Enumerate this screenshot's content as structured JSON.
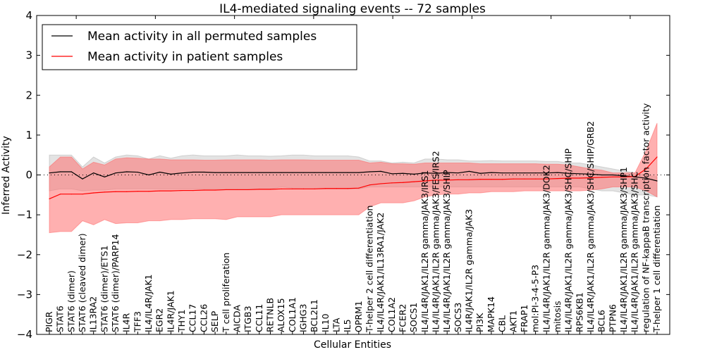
{
  "chart_data": {
    "type": "line",
    "title": "IL4-mediated signaling events -- 72 samples",
    "xlabel": "Cellular Entities",
    "ylabel": "Inferred Activity",
    "ylim": [
      -4,
      4
    ],
    "yticks": [
      -4,
      -3,
      -2,
      -1,
      0,
      1,
      2,
      3,
      4
    ],
    "ytick_labels": [
      "−4",
      "−3",
      "−2",
      "−1",
      "0",
      "1",
      "2",
      "3",
      "4"
    ],
    "reference_line": {
      "y": 0,
      "style": "dotted"
    },
    "legend": {
      "placement": "top-left",
      "entries": [
        {
          "label": "Mean activity in all permuted samples",
          "color": "#000000"
        },
        {
          "label": "Mean activity in patient samples",
          "color": "#ff0000"
        }
      ]
    },
    "colors": {
      "permuted_line": "#000000",
      "permuted_band": "#c8c8c8",
      "patient_line": "#ff0000",
      "patient_band": "#ff7070"
    },
    "categories": [
      "PIGR",
      "STAT6",
      "STAT6 (dimer)",
      "STAT6 (cleaved dimer)",
      "IL13RA2",
      "STAT6 (dimer)/ETS1",
      "STAT6 (dimer)/PARP14",
      "IL4R",
      "TFF3",
      "IL4/IL4R/JAK1",
      "EGR2",
      "IL4R/JAK1",
      "THY1",
      "CCL17",
      "CCL26",
      "SELP",
      "T cell proliferation",
      "AICDA",
      "ITGB3",
      "CCL11",
      "RETNLB",
      "ALOX15",
      "COL1A1",
      "IGHG3",
      "BCL2L1",
      "IL10",
      "LTA",
      "IL5",
      "OPRM1",
      "T-helper 2 cell differentiation",
      "IL4/IL4R/JAK1/IL13RA1/JAK2",
      "COL1A2",
      "FCER2",
      "SOCS1",
      "IL4/IL4R/JAK1/IL2R gamma/JAK3/IRS1",
      "IL4/IL4R/JAK1/IL2R gamma/JAK3/FES/IRS2",
      "IL4/IL4R/JAK1/IL2R gamma/JAK3/SHIP",
      "SOCS3",
      "IL4R/JAK1/IL2R gamma/JAK3",
      "PI3K",
      "MAPK14",
      "CBL",
      "AKT1",
      "FRAP1",
      "mol:PI-3-4-5-P3",
      "IL4/IL4R/JAK1/IL2R gamma/JAK3/DOK2",
      "mitosis",
      "IL4/IL4R/JAK1/IL2R gamma/JAK3/SHC/SHIP",
      "RPS6KB1",
      "IL4/IL4R/JAK1/IL2R gamma/JAK3/SHC/SHIP/GRB2",
      "BCL6",
      "PTPN6",
      "IL4/IL4R/JAK1/IL2R gamma/JAK3/SHP1",
      "IL4/IL4R/JAK1/IL2R gamma/JAK3/SHC",
      "regulation of NF-kappaB transcription factor activity",
      "T-helper 1 cell differentiation"
    ],
    "series": [
      {
        "name": "Mean activity in all permuted samples",
        "values": [
          0.05,
          0.08,
          0.08,
          -0.1,
          0.05,
          -0.05,
          0.05,
          0.08,
          0.07,
          0.0,
          0.07,
          0.02,
          0.05,
          0.07,
          0.07,
          0.06,
          0.06,
          0.06,
          0.06,
          0.06,
          0.06,
          0.06,
          0.06,
          0.06,
          0.06,
          0.06,
          0.06,
          0.06,
          0.06,
          0.08,
          0.09,
          0.03,
          0.04,
          0.02,
          0.05,
          0.04,
          0.06,
          0.05,
          0.09,
          0.04,
          0.06,
          0.05,
          0.05,
          0.05,
          0.05,
          0.05,
          0.06,
          0.04,
          0.03,
          0.02,
          0.0,
          0.0,
          -0.02,
          -0.05,
          -0.08,
          -0.15
        ],
        "band_upper": [
          0.5,
          0.5,
          0.5,
          0.2,
          0.45,
          0.3,
          0.45,
          0.5,
          0.48,
          0.4,
          0.48,
          0.42,
          0.48,
          0.5,
          0.48,
          0.48,
          0.48,
          0.5,
          0.48,
          0.48,
          0.47,
          0.48,
          0.5,
          0.5,
          0.48,
          0.48,
          0.48,
          0.48,
          0.45,
          0.35,
          0.35,
          0.3,
          0.32,
          0.3,
          0.4,
          0.4,
          0.38,
          0.38,
          0.35,
          0.35,
          0.36,
          0.35,
          0.35,
          0.35,
          0.35,
          0.34,
          0.34,
          0.3,
          0.3,
          0.25,
          0.2,
          0.15,
          0.1,
          0.05,
          0.0,
          -0.05
        ],
        "band_lower": [
          -0.4,
          -0.35,
          -0.35,
          -0.4,
          -0.38,
          -0.38,
          -0.35,
          -0.35,
          -0.35,
          -0.35,
          -0.35,
          -0.35,
          -0.35,
          -0.35,
          -0.35,
          -0.35,
          -0.35,
          -0.35,
          -0.35,
          -0.35,
          -0.35,
          -0.3,
          -0.33,
          -0.35,
          -0.35,
          -0.35,
          -0.35,
          -0.35,
          -0.35,
          -0.3,
          -0.3,
          -0.3,
          -0.3,
          -0.3,
          -0.3,
          -0.3,
          -0.3,
          -0.3,
          -0.3,
          -0.3,
          -0.3,
          -0.3,
          -0.3,
          -0.3,
          -0.3,
          -0.3,
          -0.3,
          -0.3,
          -0.3,
          -0.35,
          -0.4,
          -0.4,
          -0.45,
          -0.5,
          -0.5,
          -0.55
        ]
      },
      {
        "name": "Mean activity in patient samples",
        "values": [
          -0.6,
          -0.48,
          -0.48,
          -0.48,
          -0.45,
          -0.43,
          -0.42,
          -0.42,
          -0.41,
          -0.41,
          -0.4,
          -0.4,
          -0.39,
          -0.39,
          -0.38,
          -0.38,
          -0.37,
          -0.37,
          -0.37,
          -0.36,
          -0.36,
          -0.35,
          -0.35,
          -0.35,
          -0.35,
          -0.34,
          -0.34,
          -0.34,
          -0.33,
          -0.25,
          -0.22,
          -0.2,
          -0.19,
          -0.17,
          -0.15,
          -0.13,
          -0.13,
          -0.12,
          -0.12,
          -0.11,
          -0.11,
          -0.11,
          -0.1,
          -0.1,
          -0.1,
          -0.1,
          -0.09,
          -0.08,
          -0.08,
          -0.07,
          -0.06,
          -0.05,
          -0.05,
          -0.04,
          0.15,
          0.45
        ],
        "band_upper": [
          0.2,
          0.45,
          0.45,
          0.15,
          0.32,
          0.25,
          0.4,
          0.43,
          0.42,
          0.4,
          0.4,
          0.38,
          0.38,
          0.38,
          0.37,
          0.37,
          0.38,
          0.38,
          0.38,
          0.38,
          0.37,
          0.38,
          0.38,
          0.38,
          0.37,
          0.37,
          0.37,
          0.37,
          0.37,
          0.3,
          0.32,
          0.28,
          0.28,
          0.27,
          0.3,
          0.3,
          0.3,
          0.3,
          0.3,
          0.28,
          0.28,
          0.28,
          0.28,
          0.28,
          0.28,
          0.27,
          0.27,
          0.25,
          0.2,
          0.15,
          0.12,
          0.05,
          0.05,
          0.05,
          0.6,
          1.3
        ],
        "band_lower": [
          -1.45,
          -1.42,
          -1.42,
          -1.15,
          -1.25,
          -1.12,
          -1.22,
          -1.2,
          -1.2,
          -1.15,
          -1.15,
          -1.12,
          -1.12,
          -1.1,
          -1.1,
          -1.1,
          -1.12,
          -1.05,
          -1.05,
          -1.05,
          -1.05,
          -1.0,
          -1.0,
          -1.0,
          -1.0,
          -1.0,
          -1.0,
          -1.0,
          -1.0,
          -0.8,
          -0.7,
          -0.7,
          -0.7,
          -0.65,
          -0.55,
          -0.5,
          -0.48,
          -0.48,
          -0.45,
          -0.45,
          -0.42,
          -0.42,
          -0.42,
          -0.4,
          -0.4,
          -0.4,
          -0.4,
          -0.4,
          -0.4,
          -0.38,
          -0.35,
          -0.3,
          -0.3,
          -0.3,
          -0.4,
          -0.55
        ]
      }
    ]
  }
}
